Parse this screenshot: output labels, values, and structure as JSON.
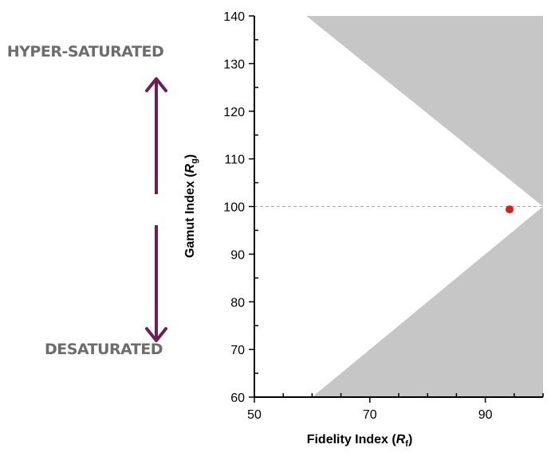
{
  "side_labels": {
    "top": "HYPER-SATURATED",
    "bottom": "DESATURATED"
  },
  "colors": {
    "arrow": "#6b1f56",
    "dark_region": "#c6c6c6",
    "light_region": "#efefef",
    "point": "#e31a1c",
    "reference_line": "#a9a9a9",
    "side_label": "#6d6d6d"
  },
  "chart_data": {
    "type": "scatter",
    "x_axis": {
      "label_main": "Fidelity Index (",
      "label_var": "R",
      "label_sub": "f",
      "label_close": ")",
      "lim": [
        50,
        100
      ],
      "ticks": [
        50,
        70,
        90
      ],
      "minor_step": 5
    },
    "y_axis": {
      "label_main": "Gamut Index (",
      "label_var": "R",
      "label_sub": "g",
      "label_close": ")",
      "lim": [
        60,
        140
      ],
      "ticks": [
        60,
        70,
        80,
        90,
        100,
        110,
        120,
        130,
        140
      ],
      "minor_step": 5
    },
    "points": [
      {
        "x": 94.2,
        "y": 99.4
      }
    ],
    "reference_line_y": 100,
    "regions": [
      {
        "name": "light",
        "polygon": [
          [
            50,
            140
          ],
          [
            100,
            100
          ],
          [
            50,
            60
          ]
        ]
      },
      {
        "name": "white",
        "polygon": [
          [
            50,
            140
          ],
          [
            50,
            60
          ],
          [
            59,
            60
          ],
          [
            100,
            100
          ],
          [
            59,
            140
          ]
        ]
      },
      {
        "name": "dark-top",
        "polygon": [
          [
            59,
            140
          ],
          [
            100,
            140
          ],
          [
            100,
            100
          ]
        ]
      },
      {
        "name": "dark-bottom",
        "polygon": [
          [
            60,
            60
          ],
          [
            100,
            60
          ],
          [
            100,
            100
          ]
        ]
      }
    ],
    "grid": false,
    "legend": "none"
  }
}
